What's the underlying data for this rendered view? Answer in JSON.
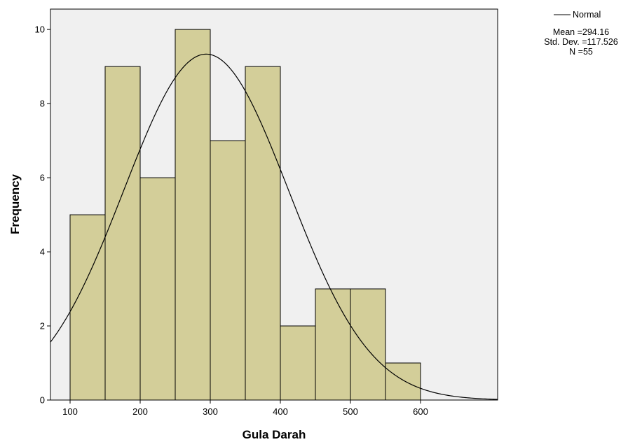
{
  "chart_data": {
    "type": "bar",
    "subtype": "histogram",
    "xlabel": "Gula Darah",
    "ylabel": "Frequency",
    "xlim": [
      72,
      710
    ],
    "ylim": [
      0,
      10.55
    ],
    "x_ticks": [
      100,
      200,
      300,
      400,
      500,
      600
    ],
    "y_ticks": [
      0,
      2,
      4,
      6,
      8,
      10
    ],
    "bins": [
      {
        "start": 100,
        "end": 150,
        "value": 5
      },
      {
        "start": 150,
        "end": 200,
        "value": 9
      },
      {
        "start": 200,
        "end": 250,
        "value": 6
      },
      {
        "start": 250,
        "end": 300,
        "value": 10
      },
      {
        "start": 300,
        "end": 350,
        "value": 7
      },
      {
        "start": 350,
        "end": 400,
        "value": 9
      },
      {
        "start": 400,
        "end": 450,
        "value": 2
      },
      {
        "start": 450,
        "end": 500,
        "value": 3
      },
      {
        "start": 500,
        "end": 550,
        "value": 3
      },
      {
        "start": 550,
        "end": 600,
        "value": 1
      }
    ],
    "normal_curve": {
      "mean": 294.16,
      "std_dev": 117.526,
      "n": 55,
      "bin_width": 50
    },
    "grid": false,
    "legend_position": "top-right",
    "legend": {
      "series_label": "Normal",
      "mean_text": "Mean =294.16",
      "std_text": "Std. Dev. =117.526",
      "n_text": "N =55"
    },
    "colors": {
      "bar_fill": "#d3ce99",
      "bar_stroke": "#000000",
      "plot_background": "#f0f0f0",
      "curve": "#000000"
    }
  }
}
